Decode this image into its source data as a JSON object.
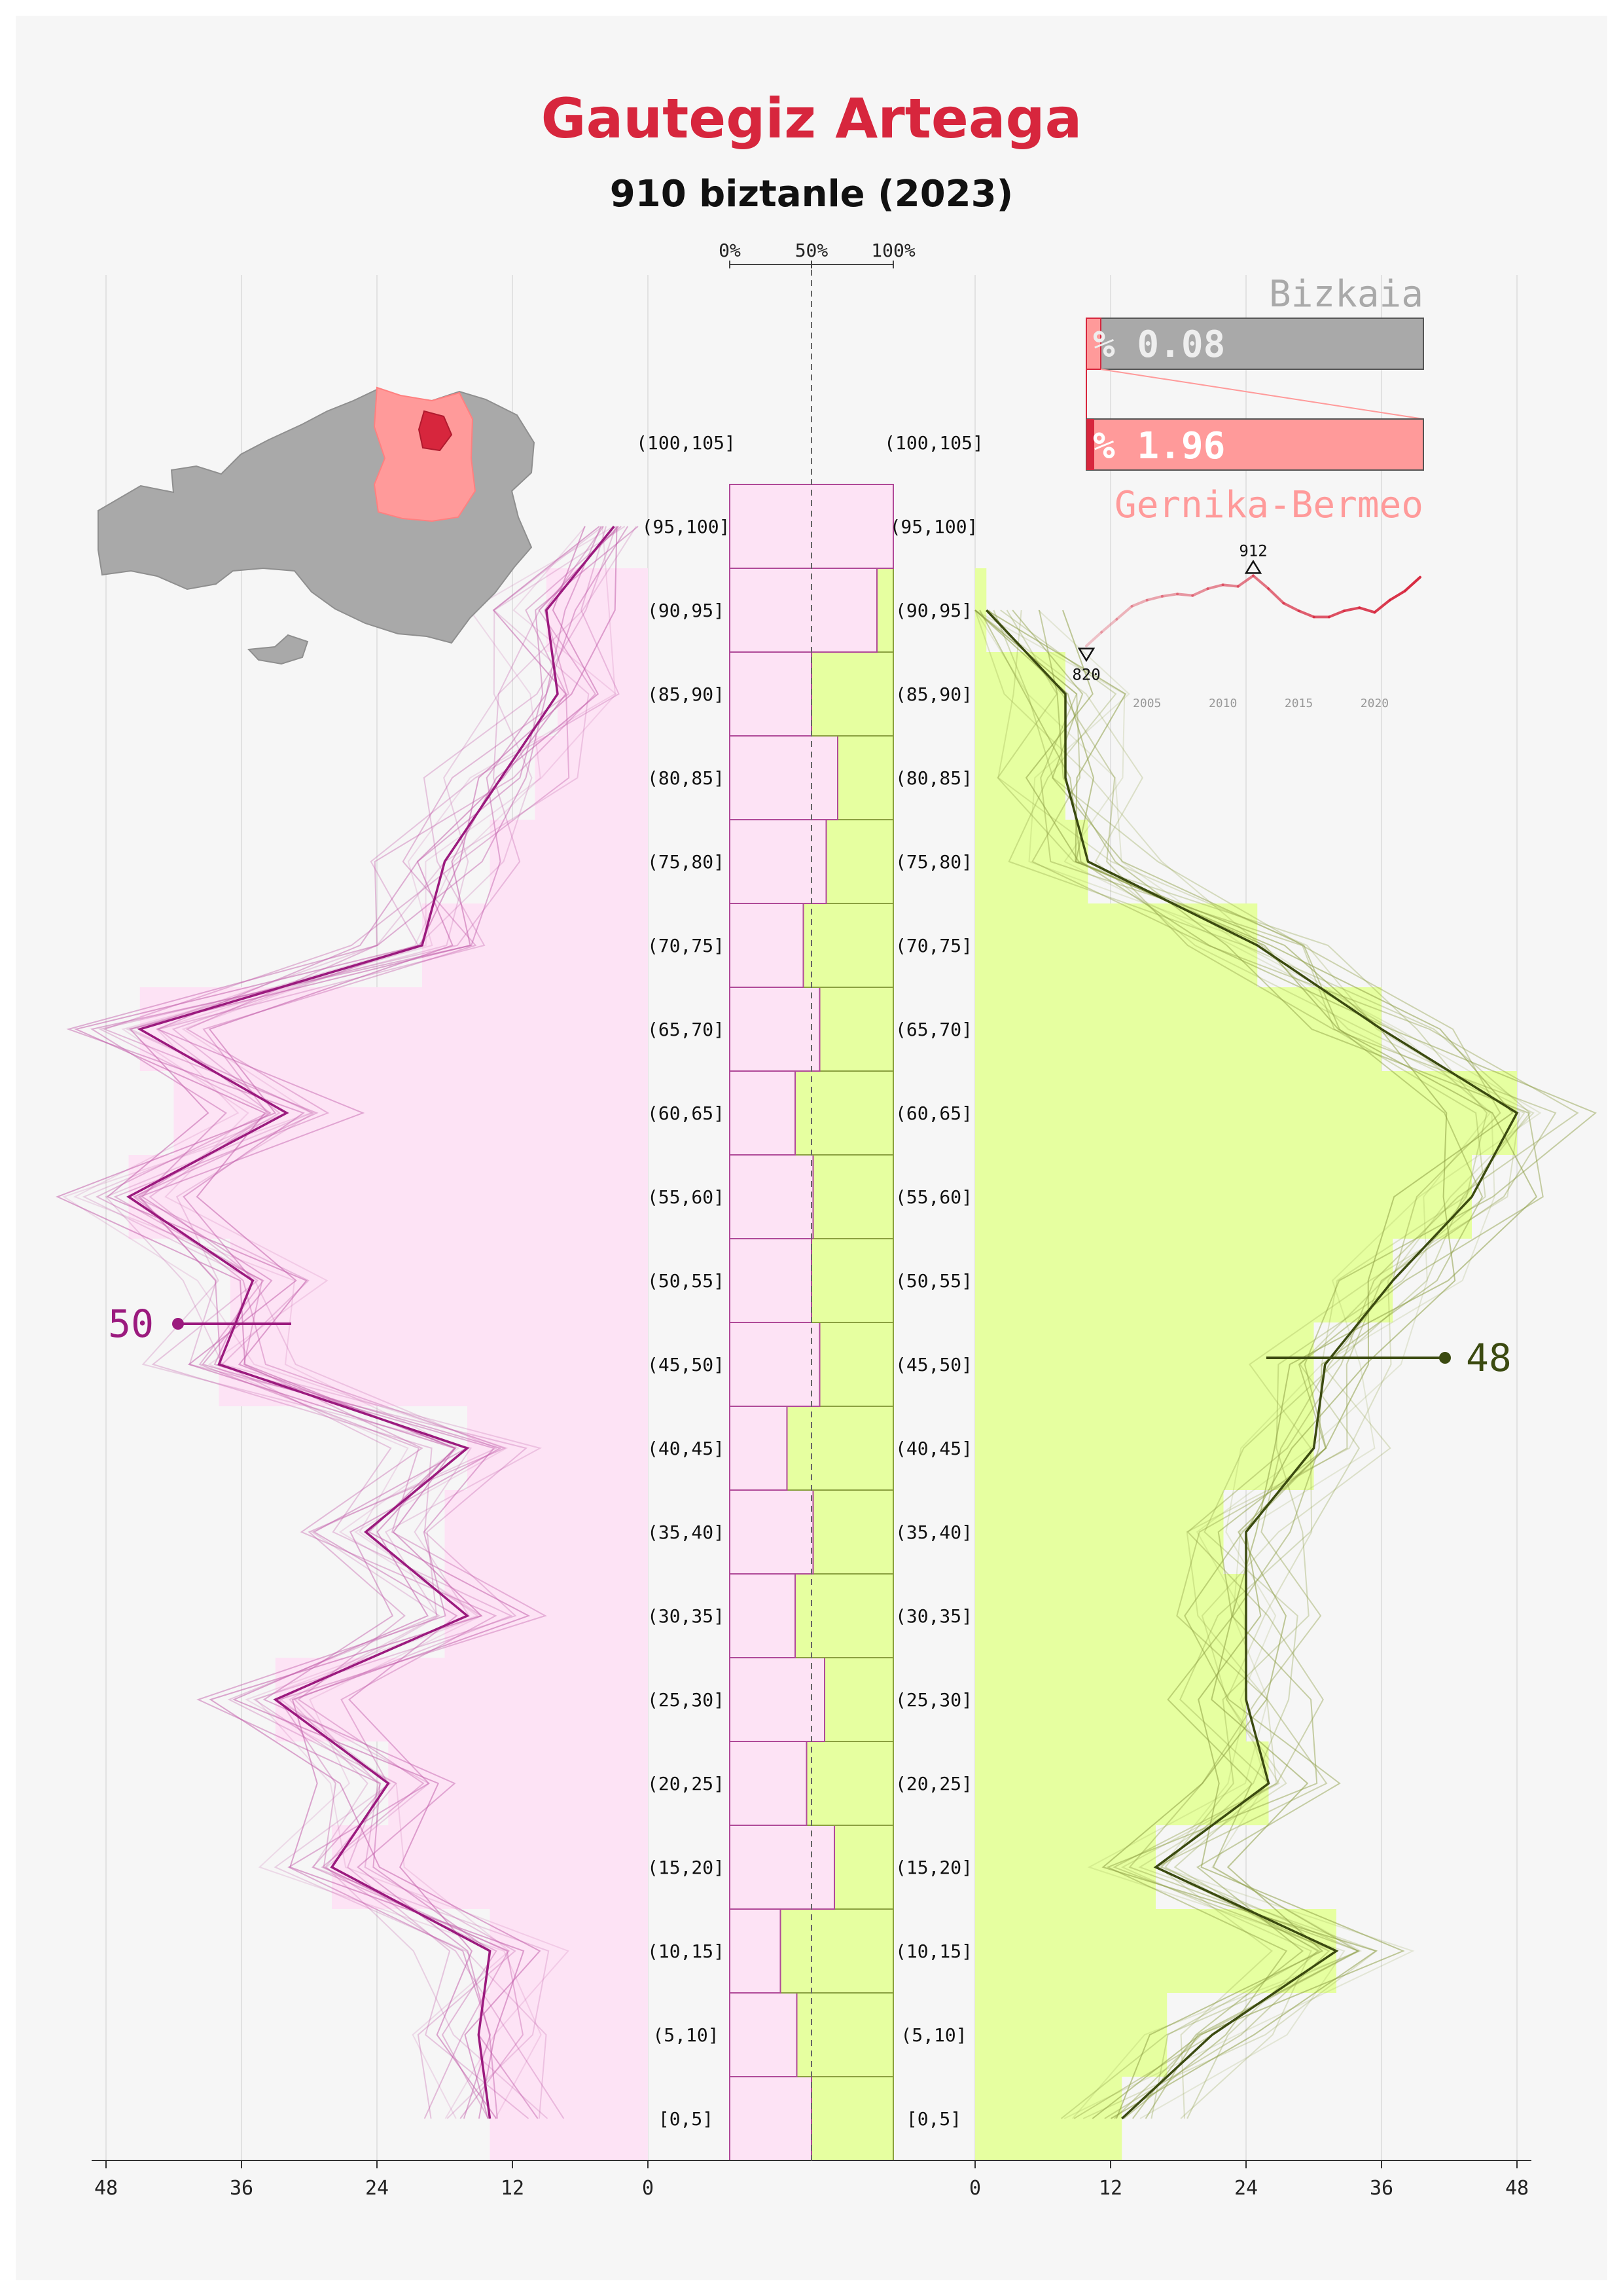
{
  "header": {
    "title": "Gautegiz Arteaga",
    "subtitle": "910 biztanle (2023)"
  },
  "colors": {
    "accent": "#d7263d",
    "female_fill": "#fde3f5",
    "female_line": "#9b1a7e",
    "male_fill": "#e6ffa0",
    "male_line": "#3b4a10",
    "region": "#ff9a9a",
    "province": "#a9a9a9",
    "background": "#f6f6f6"
  },
  "map": {
    "icon": "bizkaia-map-icon"
  },
  "share_panel": {
    "province_label": "Bizkaia",
    "province_share": "% 0.08",
    "region_label": "Gernika-Bermeo",
    "region_share": "% 1.96"
  },
  "trend": {
    "min_label": "820",
    "max_label": "912",
    "ticks": [
      "2005",
      "2010",
      "2015",
      "2020"
    ]
  },
  "annotations": {
    "female_callout": "50",
    "male_callout": "48"
  },
  "center_axis": {
    "ticks": [
      "0%",
      "50%",
      "100%"
    ]
  },
  "chart_data": {
    "type": "bar",
    "categories": [
      "[0,5]",
      "(5,10]",
      "(10,15]",
      "(15,20]",
      "(20,25]",
      "(25,30]",
      "(30,35]",
      "(35,40]",
      "(40,45]",
      "(45,50]",
      "(50,55]",
      "(55,60]",
      "(60,65]",
      "(65,70]",
      "(70,75]",
      "(75,80]",
      "(80,85]",
      "(85,90]",
      "(90,95]",
      "(95,100]",
      "(100,105]"
    ],
    "series": [
      {
        "values": [
          14,
          15,
          14,
          28,
          23,
          33,
          18,
          18,
          16,
          38,
          37,
          46,
          42,
          45,
          20,
          14,
          10,
          8,
          9,
          0,
          0
        ]
      },
      {
        "values": [
          13,
          17,
          32,
          16,
          26,
          24,
          24,
          22,
          30,
          30,
          37,
          44,
          48,
          36,
          25,
          10,
          8,
          8,
          1,
          0,
          0
        ]
      }
    ],
    "female_current_line": [
      14,
      15,
      14,
      28,
      23,
      33,
      16,
      25,
      16,
      38,
      35,
      46,
      32,
      45,
      20,
      18,
      13,
      8,
      9,
      3
    ],
    "male_current_line": [
      13,
      21,
      32,
      16,
      26,
      24,
      24,
      24,
      30,
      31,
      37,
      44,
      48,
      36,
      25,
      10,
      8,
      8,
      1,
      null
    ],
    "female_share": [
      0.5,
      0.41,
      0.31,
      0.64,
      0.47,
      0.58,
      0.4,
      0.51,
      0.35,
      0.55,
      0.5,
      0.51,
      0.4,
      0.55,
      0.45,
      0.59,
      0.66,
      0.5,
      0.9,
      1.0
    ],
    "x_ticks": [
      48,
      36,
      24,
      12,
      0
    ],
    "x_range": [
      0,
      56
    ],
    "trend_series": {
      "years": [
        2001,
        2002,
        2003,
        2004,
        2005,
        2006,
        2007,
        2008,
        2009,
        2010,
        2011,
        2012,
        2013,
        2014,
        2015,
        2016,
        2017,
        2018,
        2019,
        2020,
        2021,
        2022,
        2023
      ],
      "values": [
        820,
        838,
        855,
        872,
        880,
        885,
        888,
        886,
        895,
        900,
        898,
        912,
        895,
        876,
        866,
        858,
        858,
        866,
        870,
        864,
        880,
        892,
        910
      ],
      "min": 820,
      "max": 912
    }
  }
}
